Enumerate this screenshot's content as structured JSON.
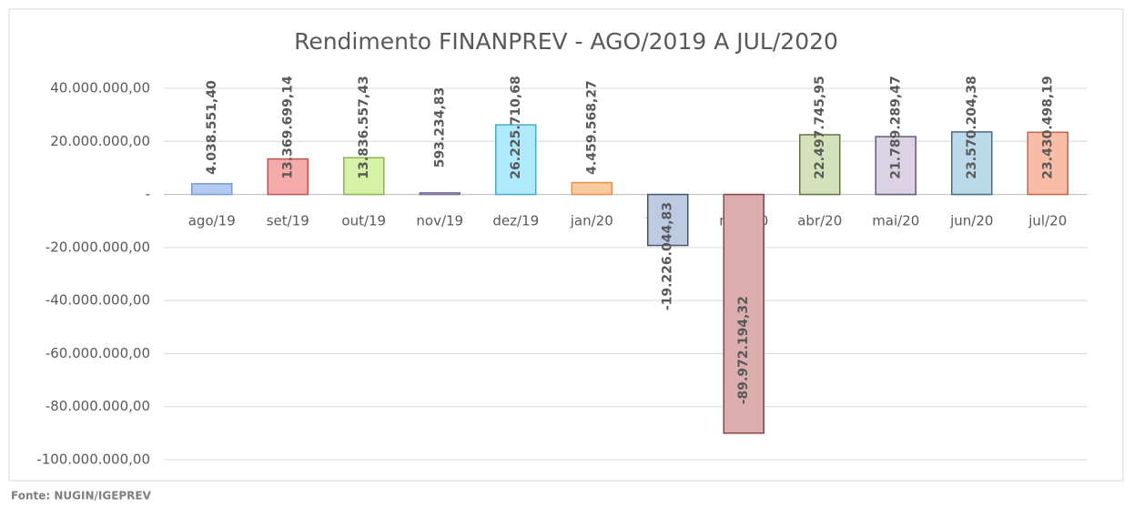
{
  "chart_data": {
    "type": "bar",
    "title": "Rendimento  FINANPREV  - AGO/2019 A JUL/2020",
    "source": "Fonte: NUGIN/IGEPREV",
    "categories": [
      "ago/19",
      "set/19",
      "out/19",
      "nov/19",
      "dez/19",
      "jan/20",
      "fev/20",
      "mar/20",
      "abr/20",
      "mai/20",
      "jun/20",
      "jul/20"
    ],
    "values": [
      4038551.4,
      13369699.14,
      13836557.43,
      593234.83,
      26225710.68,
      4459568.27,
      -19226044.83,
      -89972194.32,
      22497745.95,
      21789289.47,
      23570204.38,
      23430498.19
    ],
    "value_labels": [
      "4.038.551,40",
      "13.369.699,14",
      "13.836.557,43",
      "593.234,83",
      "26.225.710,68",
      "4.459.568,27",
      "-19.226.044,83",
      "-89.972.194,32",
      "22.497.745,95",
      "21.789.289,47",
      "23.570.204,38",
      "23.430.498,19"
    ],
    "colors": [
      "#b4caf2",
      "#f6abab",
      "#d6f2a6",
      "#d4cbe2",
      "#aeeaf9",
      "#fbcb9e",
      "#bccbe2",
      "#dbadad",
      "#d4e2bc",
      "#dbd3e3",
      "#bcdbea",
      "#f9bca6"
    ],
    "border_colors": [
      "#7a9ad4",
      "#c05454",
      "#8cb052",
      "#7a6e94",
      "#4aa8c8",
      "#e09050",
      "#44546e",
      "#844444",
      "#627444",
      "#625a74",
      "#446c84",
      "#c46444"
    ],
    "ylim": [
      -100000000,
      40000000
    ],
    "yticks": [
      {
        "value": 40000000,
        "label": "40.000.000,00"
      },
      {
        "value": 20000000,
        "label": "20.000.000,00"
      },
      {
        "value": 0,
        "label": "-"
      },
      {
        "value": -20000000,
        "label": "-20.000.000,00"
      },
      {
        "value": -40000000,
        "label": "-40.000.000,00"
      },
      {
        "value": -60000000,
        "label": "-60.000.000,00"
      },
      {
        "value": -80000000,
        "label": "-80.000.000,00"
      },
      {
        "value": -100000000,
        "label": "-100.000.000,00"
      }
    ],
    "grid": true
  }
}
